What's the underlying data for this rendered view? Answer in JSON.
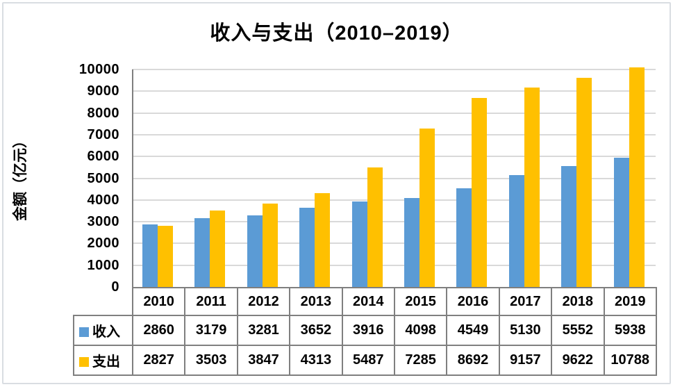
{
  "frame": {
    "background": "#FFFFFF",
    "border_color": "#D9DDE2"
  },
  "chart_data": {
    "type": "bar",
    "title": "收入与支出（2010–2019）",
    "ylabel": "金额（亿元）",
    "xlabel": "",
    "categories": [
      "2010",
      "2011",
      "2012",
      "2013",
      "2014",
      "2015",
      "2016",
      "2017",
      "2018",
      "2019"
    ],
    "series": [
      {
        "id": "income",
        "name": "收入",
        "color": "#5B9BD5",
        "values": [
          2860,
          3179,
          3281,
          3652,
          3916,
          4098,
          4549,
          5130,
          5552,
          5938
        ]
      },
      {
        "id": "expense",
        "name": "支出",
        "color": "#FFC000",
        "values": [
          2827,
          3503,
          3847,
          4313,
          5487,
          7285,
          8692,
          9157,
          9622,
          10788
        ]
      }
    ],
    "ylim": [
      0,
      10000
    ],
    "ytick_step": 1000,
    "yticks": [
      0,
      1000,
      2000,
      3000,
      4000,
      5000,
      6000,
      7000,
      8000,
      9000,
      10000
    ],
    "grid": true,
    "gridline_color": "#D9D9D9",
    "axis_color": "#7F7F7F",
    "table_border_color": "#7F7F7F",
    "legend_position": "data-table-left",
    "data_table_shown": true
  }
}
